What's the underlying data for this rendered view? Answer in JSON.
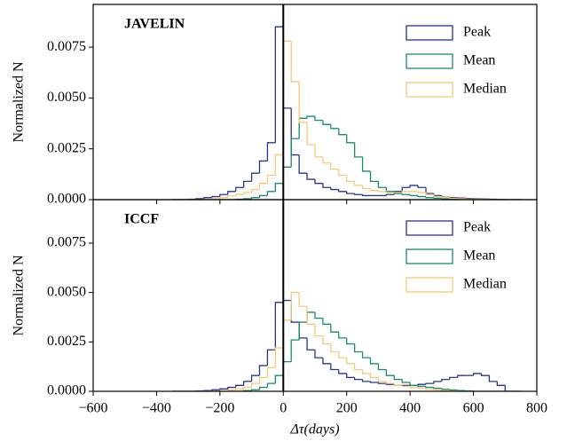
{
  "chart_data": [
    {
      "type": "histogram",
      "title": "JAVELIN",
      "ylabel": "Normalized N",
      "xlim": [
        -600,
        800
      ],
      "ylim": [
        0,
        0.0096
      ],
      "yticks": [
        {
          "value": 0,
          "label": "0.0000"
        },
        {
          "value": 0.0025,
          "label": "0.0025"
        },
        {
          "value": 0.005,
          "label": "0.0050"
        },
        {
          "value": 0.0075,
          "label": "0.0075"
        }
      ],
      "vline": 0,
      "legend": "upper right",
      "bins": [
        -350,
        -325,
        -300,
        -275,
        -250,
        -225,
        -200,
        -175,
        -150,
        -125,
        -100,
        -75,
        -50,
        -25,
        0,
        25,
        50,
        75,
        100,
        125,
        150,
        175,
        200,
        225,
        250,
        275,
        300,
        325,
        350,
        375,
        400,
        425,
        450,
        475,
        500,
        525,
        550,
        575,
        600,
        625,
        650,
        675,
        700,
        725,
        750
      ],
      "series": [
        {
          "name": "Peak",
          "color": "#27348b",
          "values": [
            0,
            0,
            2e-05,
            5e-05,
            0.0001,
            0.00015,
            0.00025,
            0.0004,
            0.0006,
            0.0009,
            0.0013,
            0.0019,
            0.0028,
            0.0085,
            0.0045,
            0.0022,
            0.0013,
            0.001,
            0.0008,
            0.0006,
            0.0005,
            0.0004,
            0.0003,
            0.00025,
            0.0002,
            0.0002,
            0.0002,
            0.00025,
            0.0004,
            0.0006,
            0.0007,
            0.0006,
            0.0003,
            0.0002,
            0.00012,
            0.0001,
            8e-05,
            6e-05,
            4e-05,
            3e-05,
            2e-05,
            1e-05,
            0,
            0
          ]
        },
        {
          "name": "Mean",
          "color": "#1b8a6b",
          "values": [
            0,
            0,
            0,
            0,
            0,
            0,
            0,
            0,
            2e-05,
            5e-05,
            0.0001,
            0.0002,
            0.0004,
            0.0008,
            0.0016,
            0.003,
            0.004,
            0.0041,
            0.0039,
            0.0037,
            0.0035,
            0.0032,
            0.0028,
            0.0021,
            0.0014,
            0.0009,
            0.0006,
            0.0004,
            0.0003,
            0.00025,
            0.0002,
            0.00015,
            0.0001,
            7e-05,
            5e-05,
            3e-05,
            2e-05,
            0,
            0,
            0,
            0,
            0,
            0,
            0
          ]
        },
        {
          "name": "Median",
          "color": "#f5c97a",
          "values": [
            0,
            0,
            0,
            0,
            2e-05,
            5e-05,
            0.0001,
            0.00018,
            0.00025,
            0.00035,
            0.0005,
            0.0008,
            0.0012,
            0.0022,
            0.0078,
            0.0058,
            0.0038,
            0.0027,
            0.0021,
            0.0018,
            0.0015,
            0.0012,
            0.0009,
            0.0007,
            0.00055,
            0.00045,
            0.0004,
            0.00035,
            0.00035,
            0.0004,
            0.0004,
            0.00035,
            0.00025,
            0.00015,
            0.0001,
            7e-05,
            5e-05,
            3e-05,
            2e-05,
            1e-05,
            0,
            0,
            0,
            0
          ]
        }
      ]
    },
    {
      "type": "histogram",
      "title": "ICCF",
      "ylabel": "Normalized N",
      "xlabel": "Δτ(days)",
      "xlim": [
        -600,
        800
      ],
      "ylim": [
        0,
        0.0097
      ],
      "xticks": [
        {
          "value": -600,
          "label": "−600"
        },
        {
          "value": -400,
          "label": "−400"
        },
        {
          "value": -200,
          "label": "−200"
        },
        0,
        200,
        400,
        600,
        800
      ],
      "yticks": [
        {
          "value": 0,
          "label": "0.0000"
        },
        {
          "value": 0.0025,
          "label": "0.0025"
        },
        {
          "value": 0.005,
          "label": "0.0050"
        },
        {
          "value": 0.0075,
          "label": "0.0075"
        }
      ],
      "vline": 0,
      "legend": "upper right",
      "bins": [
        -350,
        -325,
        -300,
        -275,
        -250,
        -225,
        -200,
        -175,
        -150,
        -125,
        -100,
        -75,
        -50,
        -25,
        0,
        25,
        50,
        75,
        100,
        125,
        150,
        175,
        200,
        225,
        250,
        275,
        300,
        325,
        350,
        375,
        400,
        425,
        450,
        475,
        500,
        525,
        550,
        575,
        600,
        625,
        650,
        675,
        700,
        725,
        750
      ],
      "series": [
        {
          "name": "Peak",
          "color": "#27348b",
          "values": [
            0,
            0,
            0,
            2e-05,
            4e-05,
            8e-05,
            0.00012,
            0.0002,
            0.0003,
            0.0005,
            0.0008,
            0.0013,
            0.0021,
            0.0045,
            0.0046,
            0.0035,
            0.0027,
            0.0021,
            0.0017,
            0.0014,
            0.0011,
            0.0009,
            0.0007,
            0.0006,
            0.0005,
            0.00045,
            0.0004,
            0.00035,
            0.0003,
            0.0003,
            0.0003,
            0.00035,
            0.0004,
            0.0005,
            0.0006,
            0.0007,
            0.0008,
            0.0008,
            0.0009,
            0.0008,
            0.0005,
            0.0003,
            0,
            0
          ]
        },
        {
          "name": "Mean",
          "color": "#1b8a6b",
          "values": [
            0,
            0,
            0,
            0,
            0,
            0,
            0,
            0,
            0,
            3e-05,
            8e-05,
            0.0002,
            0.0004,
            0.0008,
            0.0015,
            0.0026,
            0.0035,
            0.004,
            0.0037,
            0.0034,
            0.003,
            0.0027,
            0.0024,
            0.002,
            0.0017,
            0.0014,
            0.0011,
            0.0008,
            0.0006,
            0.00045,
            0.0003,
            0.00025,
            0.0002,
            0.00015,
            0.0001,
            7e-05,
            4e-05,
            2e-05,
            0,
            0,
            0,
            0,
            0,
            0
          ]
        },
        {
          "name": "Median",
          "color": "#f5c97a",
          "values": [
            0,
            0,
            0,
            0,
            0,
            0,
            3e-05,
            6e-05,
            0.00012,
            0.0002,
            0.0004,
            0.0007,
            0.0012,
            0.0022,
            0.0036,
            0.005,
            0.0043,
            0.0034,
            0.0028,
            0.0024,
            0.002,
            0.0017,
            0.0014,
            0.0011,
            0.0009,
            0.0007,
            0.0005,
            0.0004,
            0.0003,
            0.00025,
            0.0002,
            0.00015,
            0.0001,
            7e-05,
            4e-05,
            2e-05,
            0,
            0,
            0,
            0,
            0,
            0,
            0,
            0
          ]
        }
      ]
    }
  ]
}
